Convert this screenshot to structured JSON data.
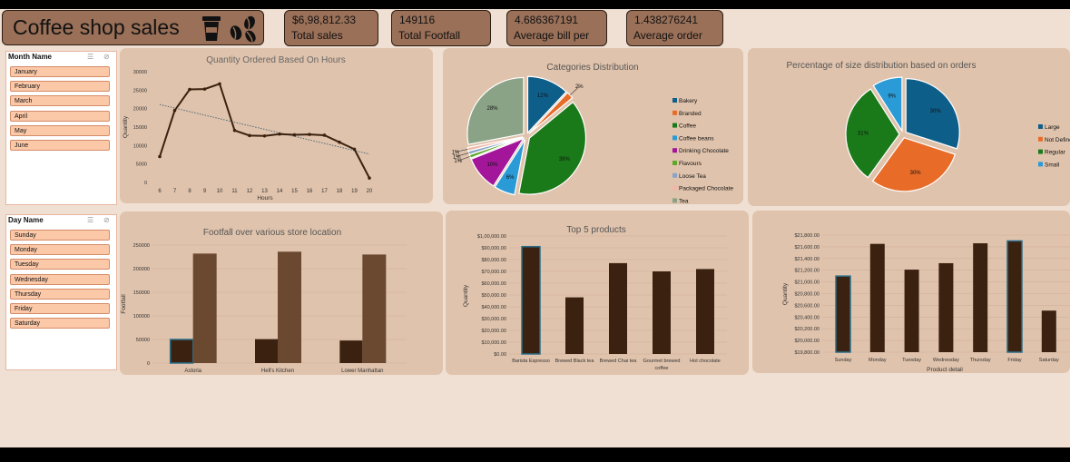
{
  "dashboard": {
    "title": "Coffee shop sales",
    "kpis": [
      {
        "value": "$6,98,812.33",
        "label": "Total sales"
      },
      {
        "value": "149116",
        "label": "Total Footfall"
      },
      {
        "value": "4.686367191",
        "label": "Average bill per"
      },
      {
        "value": "1.438276241",
        "label": "Average order"
      }
    ]
  },
  "slicers": {
    "month": {
      "title": "Month Name",
      "items": [
        "January",
        "February",
        "March",
        "April",
        "May",
        "June"
      ]
    },
    "day": {
      "title": "Day Name",
      "items": [
        "Sunday",
        "Monday",
        "Tuesday",
        "Wednesday",
        "Thursday",
        "Friday",
        "Saturday"
      ]
    }
  },
  "colors": {
    "dark_bar": "#3b2210",
    "mid_bar": "#6b4830",
    "highlight_border": "#2b6e8a",
    "panel": "#e0c3ac"
  },
  "chart_data": [
    {
      "type": "line",
      "title": "Quantity Ordered Based On Hours",
      "xlabel": "Hours",
      "ylabel": "Quantity",
      "x": [
        6,
        7,
        8,
        9,
        10,
        11,
        12,
        13,
        14,
        15,
        16,
        17,
        18,
        19,
        20
      ],
      "values": [
        7000,
        19500,
        25200,
        25300,
        26700,
        14100,
        12700,
        12600,
        13100,
        12900,
        13000,
        12800,
        10900,
        9000,
        1200
      ],
      "ylim": [
        0,
        30000
      ],
      "yticks": [
        "0",
        "5000",
        "10000",
        "15000",
        "20000",
        "25000",
        "30000"
      ],
      "trendline": true
    },
    {
      "type": "pie",
      "title": "Categories Distribution",
      "labels": [
        "Bakery",
        "Branded",
        "Coffee",
        "Coffee beans",
        "Drinking Chocolate",
        "Flavours",
        "Loose Tea",
        "Packaged Chocolate",
        "Tea"
      ],
      "values": [
        12,
        2,
        39,
        6,
        10,
        1,
        1,
        1,
        28
      ],
      "data_labels": [
        "12%",
        "2%",
        "39%",
        "6%",
        "10%",
        "1%",
        "1%",
        "1%",
        "28%"
      ],
      "colors": [
        "#0e5e8a",
        "#e86c28",
        "#1a7a1a",
        "#2a9bd6",
        "#a3169a",
        "#5ea82a",
        "#8aa4c8",
        "#f0b8a6",
        "#8aa286"
      ]
    },
    {
      "type": "pie",
      "title": "Percentage of size distribution based on orders",
      "labels": [
        "Large",
        "Not Defined",
        "Regular",
        "Small"
      ],
      "values": [
        30,
        30,
        31,
        9
      ],
      "data_labels": [
        "30%",
        "30%",
        "31%",
        "9%"
      ],
      "colors": [
        "#0e5e8a",
        "#e86c28",
        "#1a7a1a",
        "#2a9bd6"
      ]
    },
    {
      "type": "bar",
      "title": "Footfall over various store location",
      "xlabel": "Store location",
      "ylabel": "Footfall",
      "categories": [
        "Astoria",
        "Hell's Kitchen",
        "Lower Manhattan"
      ],
      "series": [
        {
          "values": [
            50000,
            50700,
            47800
          ]
        },
        {
          "values": [
            232000,
            236000,
            230000
          ]
        }
      ],
      "ylim": [
        0,
        250000
      ],
      "yticks": [
        "0",
        "50000",
        "100000",
        "150000",
        "200000",
        "250000"
      ]
    },
    {
      "type": "bar",
      "title": "Top 5 products",
      "xlabel": "Product detail",
      "ylabel": "Quantity",
      "categories": [
        "Barista Espresso",
        "Brewed Black tea",
        "Brewed Chai tea",
        "Gourmet brewed coffee",
        "Hot chocolate"
      ],
      "values": [
        91000,
        48000,
        77000,
        70000,
        72000
      ],
      "ylim": [
        0,
        100000
      ],
      "yticks": [
        "$0.00",
        "$10,000.00",
        "$20,000.00",
        "$30,000.00",
        "$40,000.00",
        "$50,000.00",
        "$60,000.00",
        "$70,000.00",
        "$80,000.00",
        "$90,000.00",
        "$1,00,000.00"
      ]
    },
    {
      "type": "bar",
      "title": "",
      "xlabel": "Product detail",
      "ylabel": "Quantity",
      "categories": [
        "Sunday",
        "Monday",
        "Tuesday",
        "Wednesday",
        "Thursday",
        "Friday",
        "Saturday"
      ],
      "values": [
        21100,
        21650,
        21210,
        21320,
        21660,
        21700,
        20510
      ],
      "ylim": [
        19800,
        21800
      ],
      "yticks": [
        "$19,800.00",
        "$20,000.00",
        "$20,200.00",
        "$20,400.00",
        "$20,600.00",
        "$20,800.00",
        "$21,000.00",
        "$21,200.00",
        "$21,400.00",
        "$21,600.00",
        "$21,800.00"
      ]
    }
  ]
}
